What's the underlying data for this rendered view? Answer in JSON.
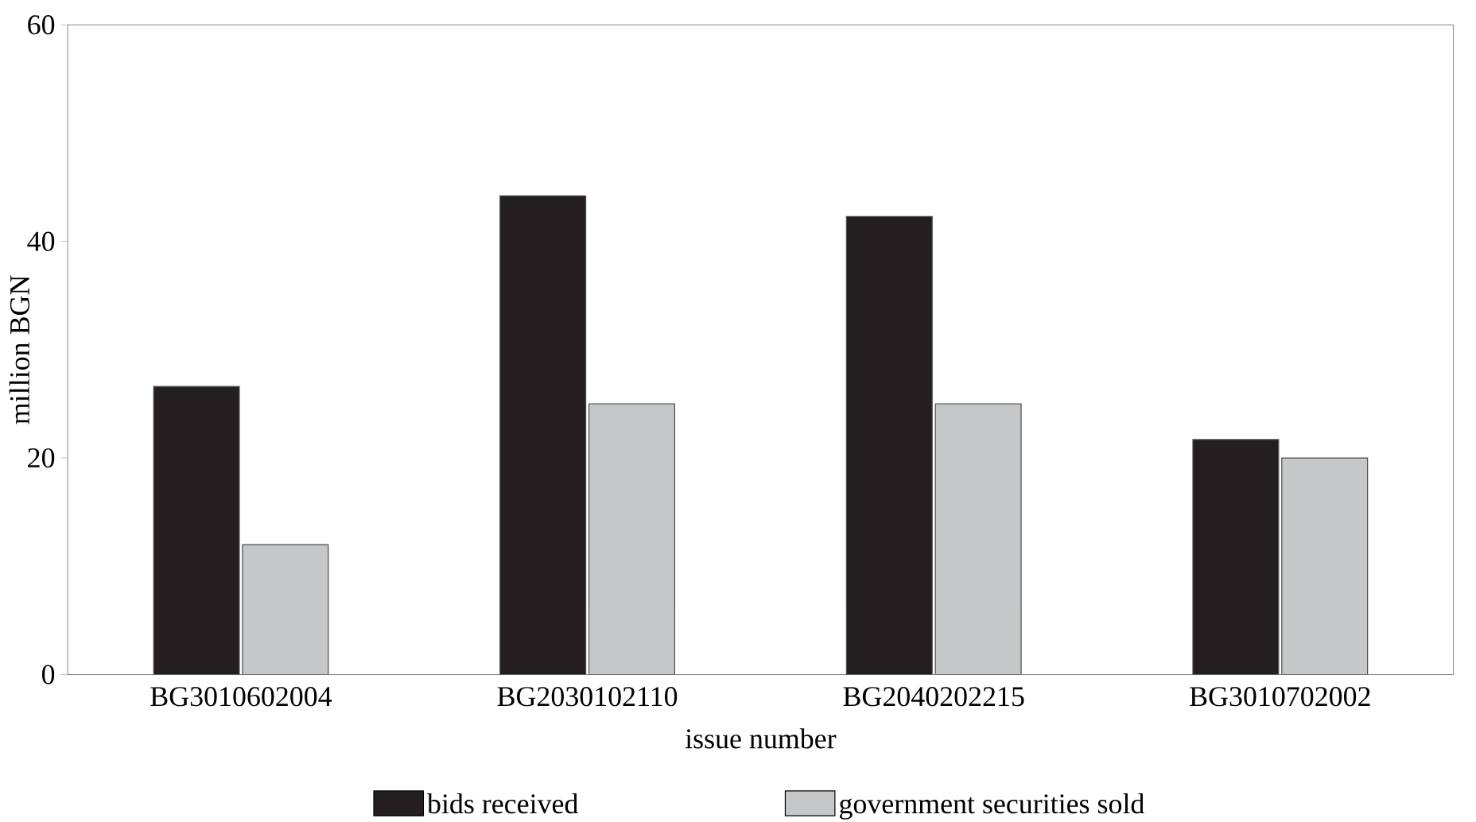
{
  "chart_data": {
    "type": "bar",
    "xlabel": "issue number",
    "ylabel": "million BGN",
    "categories": [
      "BG3010602004",
      "BG2030102110",
      "BG2040202215",
      "BG3010702002"
    ],
    "series": [
      {
        "name": "bids received",
        "color": "#231f20",
        "values": [
          26.6,
          44.2,
          42.3,
          21.7
        ]
      },
      {
        "name": "government securities sold",
        "color": "#c6c7c8",
        "values": [
          12.0,
          25.0,
          25.0,
          20.0
        ]
      }
    ],
    "ylim": [
      0,
      60
    ],
    "yticks": [
      0,
      20,
      40,
      60
    ],
    "grid": false,
    "legend": "bottom"
  }
}
